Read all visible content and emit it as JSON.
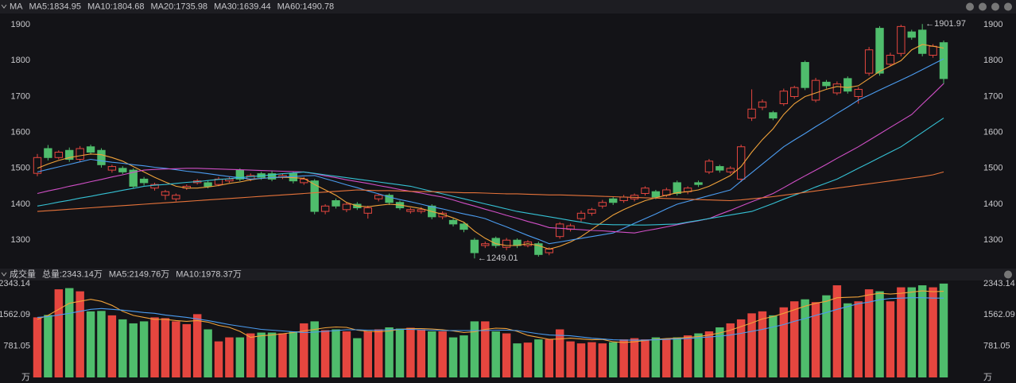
{
  "chart_data": [
    {
      "type": "candlestick",
      "title": "MA",
      "open": [
        1486,
        1555,
        1530,
        1550,
        1525,
        1560,
        1550,
        1495,
        1500,
        1495,
        1470,
        1445,
        1425,
        1415,
        1445,
        1460,
        1460,
        1455,
        1465,
        1495,
        1470,
        1485,
        1485,
        1475,
        1485,
        1460,
        1465,
        1380,
        1410,
        1385,
        1400,
        1375,
        1415,
        1425,
        1405,
        1380,
        1380,
        1395,
        1365,
        1355,
        1345,
        1300,
        1285,
        1305,
        1280,
        1300,
        1285,
        1290,
        1265,
        1310,
        1330,
        1360,
        1375,
        1395,
        1415,
        1410,
        1415,
        1430,
        1435,
        1425,
        1460,
        1435,
        1460,
        1490,
        1505,
        1490,
        1470,
        1640,
        1670,
        1655,
        1680,
        1700,
        1795,
        1690,
        1740,
        1710,
        1750,
        1700,
        1765,
        1890,
        1790,
        1820,
        1880,
        1885,
        1815,
        1850
      ],
      "high": [
        1540,
        1565,
        1550,
        1558,
        1562,
        1566,
        1556,
        1510,
        1506,
        1500,
        1476,
        1460,
        1440,
        1430,
        1455,
        1470,
        1466,
        1476,
        1476,
        1500,
        1486,
        1490,
        1492,
        1486,
        1490,
        1476,
        1470,
        1400,
        1416,
        1406,
        1406,
        1396,
        1430,
        1430,
        1410,
        1390,
        1392,
        1400,
        1380,
        1360,
        1350,
        1306,
        1296,
        1310,
        1306,
        1305,
        1300,
        1296,
        1280,
        1350,
        1346,
        1382,
        1390,
        1412,
        1420,
        1426,
        1430,
        1450,
        1440,
        1446,
        1466,
        1450,
        1466,
        1526,
        1510,
        1506,
        1566,
        1720,
        1692,
        1660,
        1722,
        1730,
        1800,
        1752,
        1746,
        1742,
        1756,
        1726,
        1838,
        1896,
        1822,
        1900,
        1886,
        1901.97,
        1846,
        1856
      ],
      "low": [
        1478,
        1522,
        1525,
        1518,
        1518,
        1538,
        1502,
        1488,
        1484,
        1444,
        1452,
        1438,
        1412,
        1408,
        1440,
        1455,
        1444,
        1450,
        1460,
        1464,
        1464,
        1468,
        1464,
        1470,
        1458,
        1454,
        1372,
        1372,
        1388,
        1378,
        1384,
        1360,
        1408,
        1398,
        1384,
        1374,
        1374,
        1358,
        1358,
        1338,
        1322,
        1249.01,
        1278,
        1278,
        1272,
        1278,
        1280,
        1254,
        1258,
        1304,
        1324,
        1352,
        1368,
        1388,
        1398,
        1404,
        1408,
        1424,
        1414,
        1420,
        1424,
        1428,
        1448,
        1484,
        1488,
        1484,
        1462,
        1632,
        1662,
        1634,
        1674,
        1694,
        1718,
        1684,
        1722,
        1704,
        1708,
        1680,
        1758,
        1758,
        1784,
        1812,
        1858,
        1812,
        1808,
        1735
      ],
      "close": [
        1530,
        1530,
        1545,
        1525,
        1555,
        1545,
        1510,
        1505,
        1490,
        1450,
        1460,
        1455,
        1435,
        1425,
        1450,
        1465,
        1450,
        1470,
        1470,
        1470,
        1480,
        1475,
        1470,
        1480,
        1465,
        1470,
        1380,
        1395,
        1395,
        1400,
        1390,
        1390,
        1425,
        1405,
        1390,
        1385,
        1385,
        1365,
        1375,
        1345,
        1330,
        1265,
        1290,
        1285,
        1300,
        1285,
        1295,
        1260,
        1275,
        1345,
        1340,
        1375,
        1385,
        1405,
        1405,
        1420,
        1425,
        1445,
        1420,
        1440,
        1430,
        1445,
        1455,
        1520,
        1495,
        1500,
        1560,
        1665,
        1685,
        1640,
        1715,
        1725,
        1725,
        1745,
        1730,
        1735,
        1715,
        1720,
        1830,
        1765,
        1815,
        1895,
        1865,
        1820,
        1840,
        1750
      ],
      "up_color": "#e5463f",
      "down_color": "#4fbd6c",
      "series": [
        {
          "name": "MA5:1834.95",
          "color": "#f0a23a",
          "values": [
            1500,
            1512,
            1522,
            1530,
            1535,
            1540,
            1538,
            1530,
            1520,
            1505,
            1490,
            1475,
            1462,
            1450,
            1445,
            1445,
            1448,
            1452,
            1458,
            1462,
            1468,
            1472,
            1474,
            1475,
            1474,
            1472,
            1455,
            1440,
            1425,
            1405,
            1395,
            1393,
            1397,
            1400,
            1398,
            1393,
            1388,
            1380,
            1372,
            1362,
            1350,
            1325,
            1305,
            1290,
            1285,
            1285,
            1290,
            1285,
            1275,
            1283,
            1295,
            1310,
            1330,
            1350,
            1370,
            1385,
            1398,
            1410,
            1418,
            1425,
            1432,
            1435,
            1440,
            1450,
            1465,
            1480,
            1505,
            1545,
            1580,
            1610,
            1650,
            1680,
            1700,
            1710,
            1720,
            1728,
            1725,
            1730,
            1750,
            1770,
            1785,
            1800,
            1830,
            1845,
            1840,
            1835
          ]
        },
        {
          "name": "MA10:1804.68",
          "color": "#4b9cf0",
          "values": [
            1490,
            1497,
            1504,
            1511,
            1518,
            1525,
            1521,
            1517,
            1514,
            1510,
            1507,
            1503,
            1500,
            1496,
            1492,
            1489,
            1485,
            1481,
            1477,
            1474,
            1470,
            1472,
            1474,
            1476,
            1477,
            1479,
            1480,
            1471,
            1463,
            1454,
            1446,
            1437,
            1429,
            1420,
            1413,
            1407,
            1400,
            1393,
            1387,
            1380,
            1373,
            1367,
            1360,
            1348,
            1337,
            1325,
            1313,
            1302,
            1290,
            1295,
            1300,
            1305,
            1310,
            1315,
            1320,
            1333,
            1347,
            1360,
            1373,
            1387,
            1400,
            1408,
            1416,
            1424,
            1432,
            1440,
            1464,
            1488,
            1512,
            1536,
            1560,
            1579,
            1597,
            1616,
            1634,
            1653,
            1671,
            1690,
            1704,
            1718,
            1732,
            1746,
            1760,
            1775,
            1790,
            1805
          ]
        },
        {
          "name": "MA20:1735.98",
          "color": "#d04fc6",
          "values": [
            1430,
            1437,
            1443,
            1450,
            1456,
            1463,
            1469,
            1476,
            1482,
            1489,
            1495,
            1497,
            1498,
            1499,
            1500,
            1500,
            1499,
            1498,
            1497,
            1496,
            1495,
            1494,
            1493,
            1492,
            1491,
            1490,
            1485,
            1479,
            1474,
            1468,
            1463,
            1458,
            1452,
            1447,
            1441,
            1436,
            1431,
            1425,
            1420,
            1412,
            1403,
            1395,
            1386,
            1378,
            1369,
            1361,
            1352,
            1344,
            1335,
            1333,
            1331,
            1329,
            1327,
            1326,
            1324,
            1322,
            1320,
            1326,
            1331,
            1337,
            1343,
            1349,
            1354,
            1360,
            1372,
            1383,
            1395,
            1407,
            1418,
            1430,
            1446,
            1463,
            1479,
            1495,
            1511,
            1528,
            1544,
            1560,
            1578,
            1596,
            1614,
            1632,
            1650,
            1679,
            1707,
            1736
          ]
        },
        {
          "name": "MA30:1639.44",
          "color": "#35c1d4",
          "values": [
            1395,
            1400,
            1406,
            1411,
            1417,
            1422,
            1428,
            1433,
            1439,
            1444,
            1450,
            1453,
            1455,
            1458,
            1461,
            1463,
            1466,
            1469,
            1471,
            1474,
            1477,
            1479,
            1482,
            1485,
            1487,
            1490,
            1486,
            1482,
            1478,
            1474,
            1470,
            1466,
            1462,
            1458,
            1454,
            1450,
            1443,
            1436,
            1429,
            1422,
            1415,
            1408,
            1401,
            1394,
            1387,
            1380,
            1375,
            1370,
            1365,
            1360,
            1355,
            1350,
            1345,
            1344,
            1343,
            1343,
            1342,
            1342,
            1343,
            1344,
            1345,
            1350,
            1355,
            1360,
            1365,
            1370,
            1375,
            1380,
            1391,
            1402,
            1414,
            1425,
            1436,
            1448,
            1459,
            1470,
            1485,
            1500,
            1515,
            1530,
            1545,
            1560,
            1580,
            1600,
            1620,
            1640
          ]
        },
        {
          "name": "MA60:1490.78",
          "color": "#e6733a",
          "values": [
            1380,
            1382,
            1384,
            1386,
            1388,
            1390,
            1392,
            1394,
            1396,
            1398,
            1400,
            1402,
            1404,
            1406,
            1408,
            1410,
            1412,
            1414,
            1416,
            1418,
            1420,
            1422,
            1424,
            1426,
            1428,
            1430,
            1432,
            1434,
            1436,
            1438,
            1440,
            1439,
            1438,
            1438,
            1437,
            1436,
            1435,
            1435,
            1434,
            1433,
            1432,
            1432,
            1431,
            1430,
            1429,
            1429,
            1428,
            1427,
            1426,
            1426,
            1425,
            1424,
            1423,
            1422,
            1421,
            1420,
            1419,
            1418,
            1417,
            1416,
            1415,
            1414,
            1413,
            1412,
            1411,
            1410,
            1412,
            1415,
            1418,
            1421,
            1425,
            1429,
            1433,
            1437,
            1441,
            1445,
            1449,
            1453,
            1457,
            1461,
            1465,
            1469,
            1473,
            1477,
            1482,
            1490
          ]
        }
      ],
      "ylim": [
        1223,
        1929
      ],
      "yticks": [
        1300,
        1400,
        1500,
        1600,
        1700,
        1800,
        1900
      ],
      "grid": false,
      "annotations": [
        {
          "label": "←1901.97",
          "value": 1901.97
        },
        {
          "label": "←1249.01",
          "value": 1249.01
        }
      ]
    },
    {
      "type": "bar",
      "title": "成交量",
      "subtitle": "总量:2343.14万",
      "subtitle_color": "#4fbd6c",
      "values": [
        1500,
        1560,
        2200,
        2230,
        2150,
        1650,
        1660,
        1550,
        1450,
        1350,
        1400,
        1500,
        1480,
        1400,
        1330,
        1580,
        1200,
        900,
        1000,
        1000,
        1100,
        1120,
        1120,
        1100,
        1150,
        1350,
        1400,
        1180,
        1200,
        1150,
        980,
        1160,
        1200,
        1250,
        1220,
        1240,
        1200,
        1150,
        1150,
        1000,
        1050,
        1400,
        1400,
        1150,
        1100,
        850,
        870,
        950,
        950,
        1200,
        900,
        850,
        880,
        850,
        880,
        950,
        980,
        950,
        1000,
        970,
        1000,
        1050,
        1100,
        1150,
        1250,
        1350,
        1450,
        1600,
        1650,
        1550,
        1750,
        1900,
        1950,
        1880,
        2050,
        2300,
        1850,
        1900,
        2200,
        2150,
        1900,
        2250,
        2250,
        2300,
        2250,
        2343.14
      ],
      "up_color": "#e5463f",
      "down_color": "#4fbd6c",
      "series": [
        {
          "name": "MA5:2149.76万",
          "color": "#f0a23a",
          "values": [
            1450,
            1550,
            1700,
            1850,
            1900,
            1950,
            1900,
            1800,
            1650,
            1550,
            1500,
            1450,
            1450,
            1420,
            1400,
            1420,
            1380,
            1300,
            1250,
            1150,
            1000,
            1040,
            1060,
            1090,
            1120,
            1160,
            1200,
            1240,
            1260,
            1250,
            1180,
            1150,
            1140,
            1160,
            1200,
            1220,
            1220,
            1210,
            1190,
            1160,
            1120,
            1140,
            1200,
            1230,
            1220,
            1150,
            1050,
            1000,
            950,
            960,
            980,
            960,
            940,
            950,
            890,
            870,
            890,
            920,
            950,
            970,
            980,
            1000,
            1020,
            1060,
            1110,
            1180,
            1270,
            1360,
            1460,
            1520,
            1600,
            1690,
            1780,
            1850,
            1900,
            1990,
            2000,
            2010,
            2060,
            2100,
            2080,
            2100,
            2130,
            2160,
            2140,
            2150
          ]
        },
        {
          "name": "MA10:1978.37万",
          "color": "#4b9cf0",
          "values": [
            1500,
            1520,
            1560,
            1600,
            1650,
            1700,
            1720,
            1700,
            1680,
            1650,
            1620,
            1600,
            1560,
            1530,
            1500,
            1460,
            1420,
            1370,
            1320,
            1280,
            1240,
            1200,
            1180,
            1160,
            1140,
            1120,
            1130,
            1150,
            1170,
            1190,
            1190,
            1180,
            1180,
            1190,
            1200,
            1200,
            1190,
            1180,
            1170,
            1170,
            1170,
            1170,
            1170,
            1180,
            1180,
            1170,
            1130,
            1090,
            1060,
            1050,
            1040,
            1010,
            980,
            960,
            940,
            930,
            930,
            930,
            940,
            950,
            960,
            970,
            990,
            1010,
            1030,
            1060,
            1100,
            1150,
            1200,
            1260,
            1320,
            1400,
            1470,
            1550,
            1620,
            1700,
            1770,
            1840,
            1880,
            1940,
            1970,
            1980,
            1990,
            1990,
            1980,
            1980
          ]
        }
      ],
      "ylim": [
        0,
        2420
      ],
      "yticks": [
        {
          "value": 0,
          "label": "万"
        },
        781.05,
        1562.09,
        2343.14
      ],
      "grid": false
    }
  ]
}
